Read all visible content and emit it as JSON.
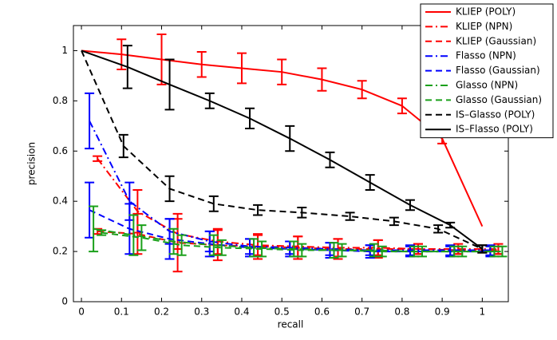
{
  "chart_data": {
    "type": "line",
    "xlabel": "recall",
    "ylabel": "precision",
    "xlim": [
      -0.02,
      1.065
    ],
    "ylim": [
      0,
      1.1
    ],
    "xticks": [
      0,
      0.1,
      0.2,
      0.3,
      0.4,
      0.5,
      0.6,
      0.7,
      0.8,
      0.9,
      1
    ],
    "yticks": [
      0,
      0.2,
      0.4,
      0.6,
      0.8,
      1
    ],
    "legend": "top-right",
    "series": [
      {
        "name": "KLIEP (POLY)",
        "color": "#ff0000",
        "style": "solid",
        "x": [
          0,
          0.1,
          0.2,
          0.3,
          0.4,
          0.5,
          0.6,
          0.7,
          0.8,
          0.9,
          1.0
        ],
        "values": [
          1,
          0.985,
          0.965,
          0.945,
          0.93,
          0.915,
          0.885,
          0.845,
          0.78,
          0.65,
          0.3
        ],
        "errors": [
          null,
          0.06,
          0.1,
          0.05,
          0.06,
          0.05,
          0.045,
          0.035,
          0.03,
          0.02,
          null
        ]
      },
      {
        "name": "KLIEP (NPN)",
        "color": "#ff0000",
        "style": "dashdot",
        "x": [
          0.04,
          0.14,
          0.24,
          0.34,
          0.44,
          0.54,
          0.64,
          0.74,
          0.84,
          0.94,
          1.04
        ],
        "values": [
          0.57,
          0.36,
          0.27,
          0.24,
          0.225,
          0.22,
          0.215,
          0.215,
          0.21,
          0.21,
          0.21
        ],
        "errors": [
          0.01,
          0.085,
          0.06,
          0.05,
          0.04,
          0.04,
          0.035,
          0.03,
          0.02,
          0.02,
          0.02
        ]
      },
      {
        "name": "KLIEP (Gaussian)",
        "color": "#ff0000",
        "style": "dashed",
        "x": [
          0.04,
          0.14,
          0.24,
          0.34,
          0.44,
          0.54,
          0.64,
          0.74,
          0.84,
          0.94,
          1.04
        ],
        "values": [
          0.28,
          0.27,
          0.235,
          0.225,
          0.22,
          0.215,
          0.21,
          0.21,
          0.21,
          0.205,
          0.205
        ],
        "errors": [
          0.01,
          0.08,
          0.115,
          0.06,
          0.05,
          0.045,
          0.04,
          0.035,
          0.02,
          0.015,
          0.015
        ]
      },
      {
        "name": "Flasso (NPN)",
        "color": "#0000ff",
        "style": "dashdot",
        "x": [
          0.02,
          0.12,
          0.22,
          0.32,
          0.42,
          0.52,
          0.62,
          0.72,
          0.82,
          0.92,
          1.02
        ],
        "values": [
          0.72,
          0.4,
          0.28,
          0.24,
          0.22,
          0.215,
          0.21,
          0.205,
          0.205,
          0.205,
          0.205
        ],
        "errors": [
          0.11,
          0.075,
          0.05,
          0.04,
          0.03,
          0.025,
          0.025,
          0.02,
          0.02,
          0.02,
          0.02
        ]
      },
      {
        "name": "Flasso (Gaussian)",
        "color": "#0000ff",
        "style": "dashed",
        "x": [
          0.02,
          0.12,
          0.22,
          0.32,
          0.42,
          0.52,
          0.62,
          0.72,
          0.82,
          0.92,
          1.02
        ],
        "values": [
          0.365,
          0.29,
          0.25,
          0.23,
          0.215,
          0.21,
          0.205,
          0.2,
          0.2,
          0.2,
          0.2
        ],
        "errors": [
          0.11,
          0.1,
          0.08,
          0.05,
          0.035,
          0.03,
          0.03,
          0.025,
          0.02,
          0.02,
          0.02
        ]
      },
      {
        "name": "Glasso (NPN)",
        "color": "#1aa01a",
        "style": "dashdot",
        "x": [
          0.03,
          0.13,
          0.23,
          0.33,
          0.43,
          0.53,
          0.63,
          0.73,
          0.83,
          0.93,
          1.03
        ],
        "values": [
          0.29,
          0.265,
          0.24,
          0.225,
          0.215,
          0.21,
          0.205,
          0.205,
          0.2,
          0.2,
          0.2
        ],
        "errors": [
          0.09,
          0.08,
          0.05,
          0.04,
          0.035,
          0.03,
          0.03,
          0.025,
          0.02,
          0.02,
          0.02
        ]
      },
      {
        "name": "Glasso (Gaussian)",
        "color": "#1aa01a",
        "style": "dashed",
        "x": [
          0.05,
          0.15,
          0.25,
          0.35,
          0.45,
          0.55,
          0.65,
          0.75,
          0.85,
          0.95,
          1.05
        ],
        "values": [
          0.275,
          0.255,
          0.225,
          0.215,
          0.21,
          0.205,
          0.205,
          0.2,
          0.2,
          0.2,
          0.2
        ],
        "errors": [
          0.01,
          0.05,
          0.04,
          0.03,
          0.03,
          0.025,
          0.025,
          0.02,
          0.02,
          0.02,
          0.02
        ]
      },
      {
        "name": "IS–Glasso (POLY)",
        "color": "#000000",
        "style": "dashed",
        "x": [
          0,
          0.105,
          0.22,
          0.33,
          0.44,
          0.55,
          0.67,
          0.78,
          0.89,
          1.0
        ],
        "values": [
          1,
          0.62,
          0.45,
          0.39,
          0.365,
          0.355,
          0.34,
          0.32,
          0.29,
          0.21
        ],
        "errors": [
          null,
          0.045,
          0.05,
          0.03,
          0.02,
          0.02,
          0.015,
          0.015,
          0.015,
          0.015
        ]
      },
      {
        "name": "IS–Flasso (POLY)",
        "color": "#000000",
        "style": "solid",
        "x": [
          0,
          0.115,
          0.22,
          0.32,
          0.42,
          0.52,
          0.62,
          0.72,
          0.82,
          0.92,
          1.0
        ],
        "values": [
          1,
          0.935,
          0.865,
          0.8,
          0.73,
          0.65,
          0.565,
          0.475,
          0.385,
          0.305,
          0.21
        ],
        "errors": [
          null,
          0.085,
          0.1,
          0.03,
          0.04,
          0.05,
          0.03,
          0.03,
          0.02,
          0.01,
          0.015
        ]
      }
    ]
  }
}
